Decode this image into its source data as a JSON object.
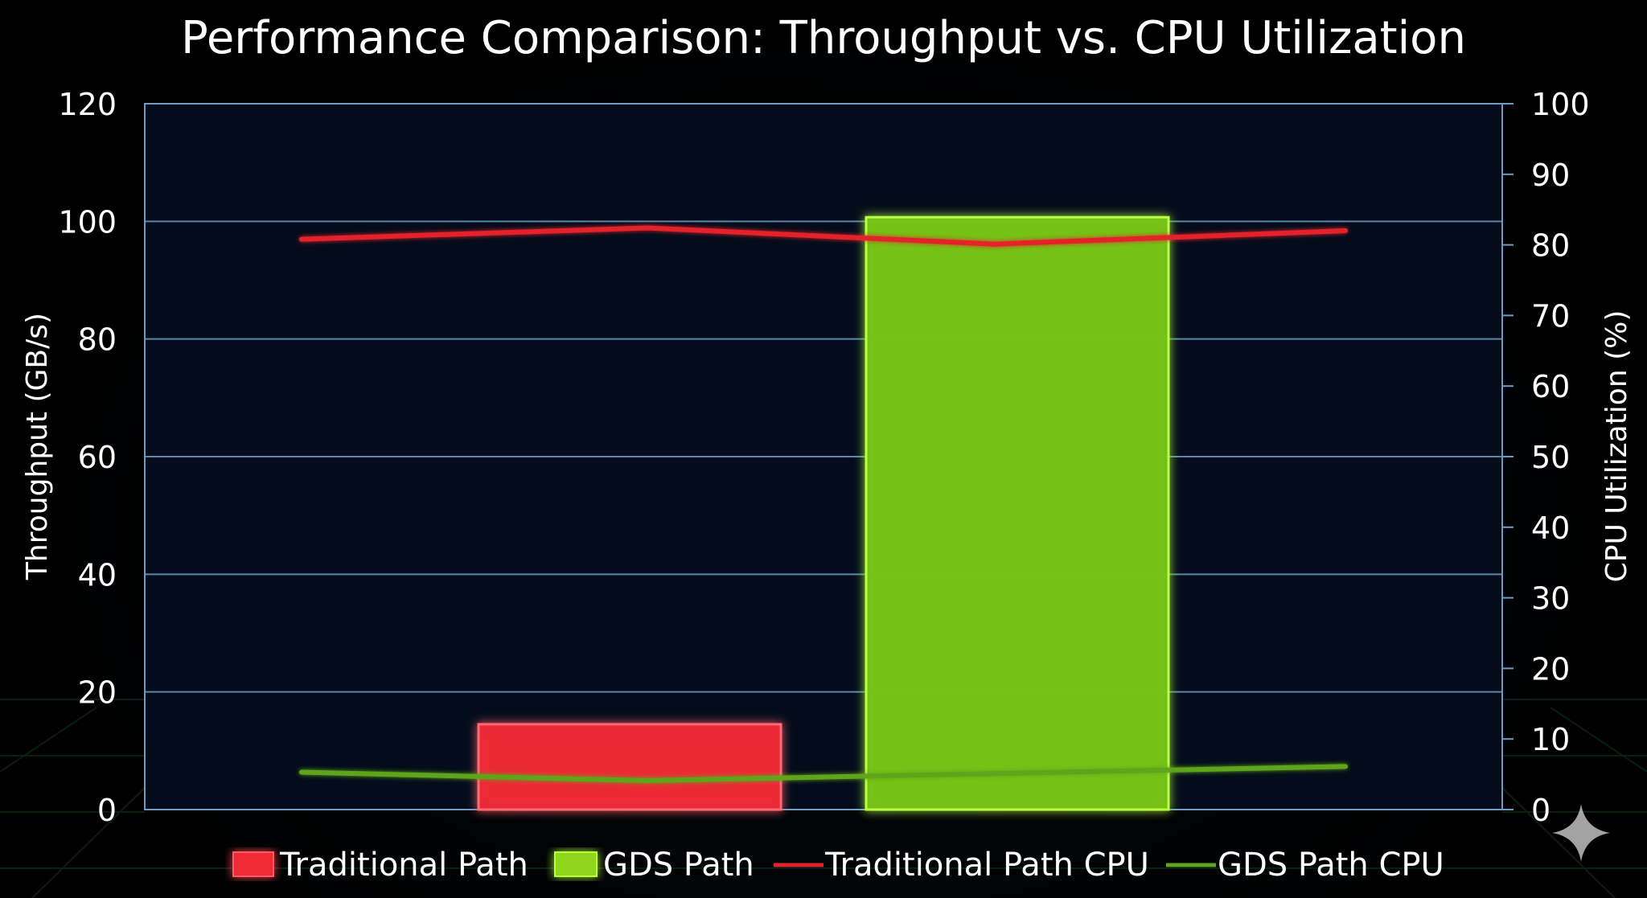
{
  "chart_data": {
    "type": "bar",
    "title": "Performance Comparison: Throughput vs. CPU Utilization",
    "ylabel": "Throughput (GB/s)",
    "y2label": "CPU Utilization (%)",
    "ylim": [
      0,
      120
    ],
    "y2lim": [
      0,
      100
    ],
    "yticks": [
      "0",
      "20",
      "40",
      "60",
      "80",
      "100",
      "120"
    ],
    "y2ticks": [
      "0",
      "10",
      "20",
      "30",
      "40",
      "50",
      "60",
      "70",
      "80",
      "90",
      "100"
    ],
    "grid": true,
    "legend_position": "bottom",
    "bars": [
      {
        "name": "Traditional Path",
        "value": 14.5,
        "color": "#ee2a36"
      },
      {
        "name": "GDS Path",
        "value": 100.7,
        "color": "#76c314"
      }
    ],
    "lines": [
      {
        "name": "Traditional Path CPU",
        "color": "#e3222c",
        "values": [
          80.8,
          82.4,
          80.1,
          82.0
        ]
      },
      {
        "name": "GDS Path CPU",
        "color": "#5fa51d",
        "values": [
          5.3,
          4.1,
          5.1,
          6.1
        ]
      }
    ],
    "legend": [
      "Traditional Path",
      "GDS Path",
      "Traditional Path CPU",
      "GDS Path CPU"
    ],
    "colors": {
      "plot_background": "#040c1b",
      "grid": "#6f9cc0",
      "text": "#ffffff"
    }
  }
}
